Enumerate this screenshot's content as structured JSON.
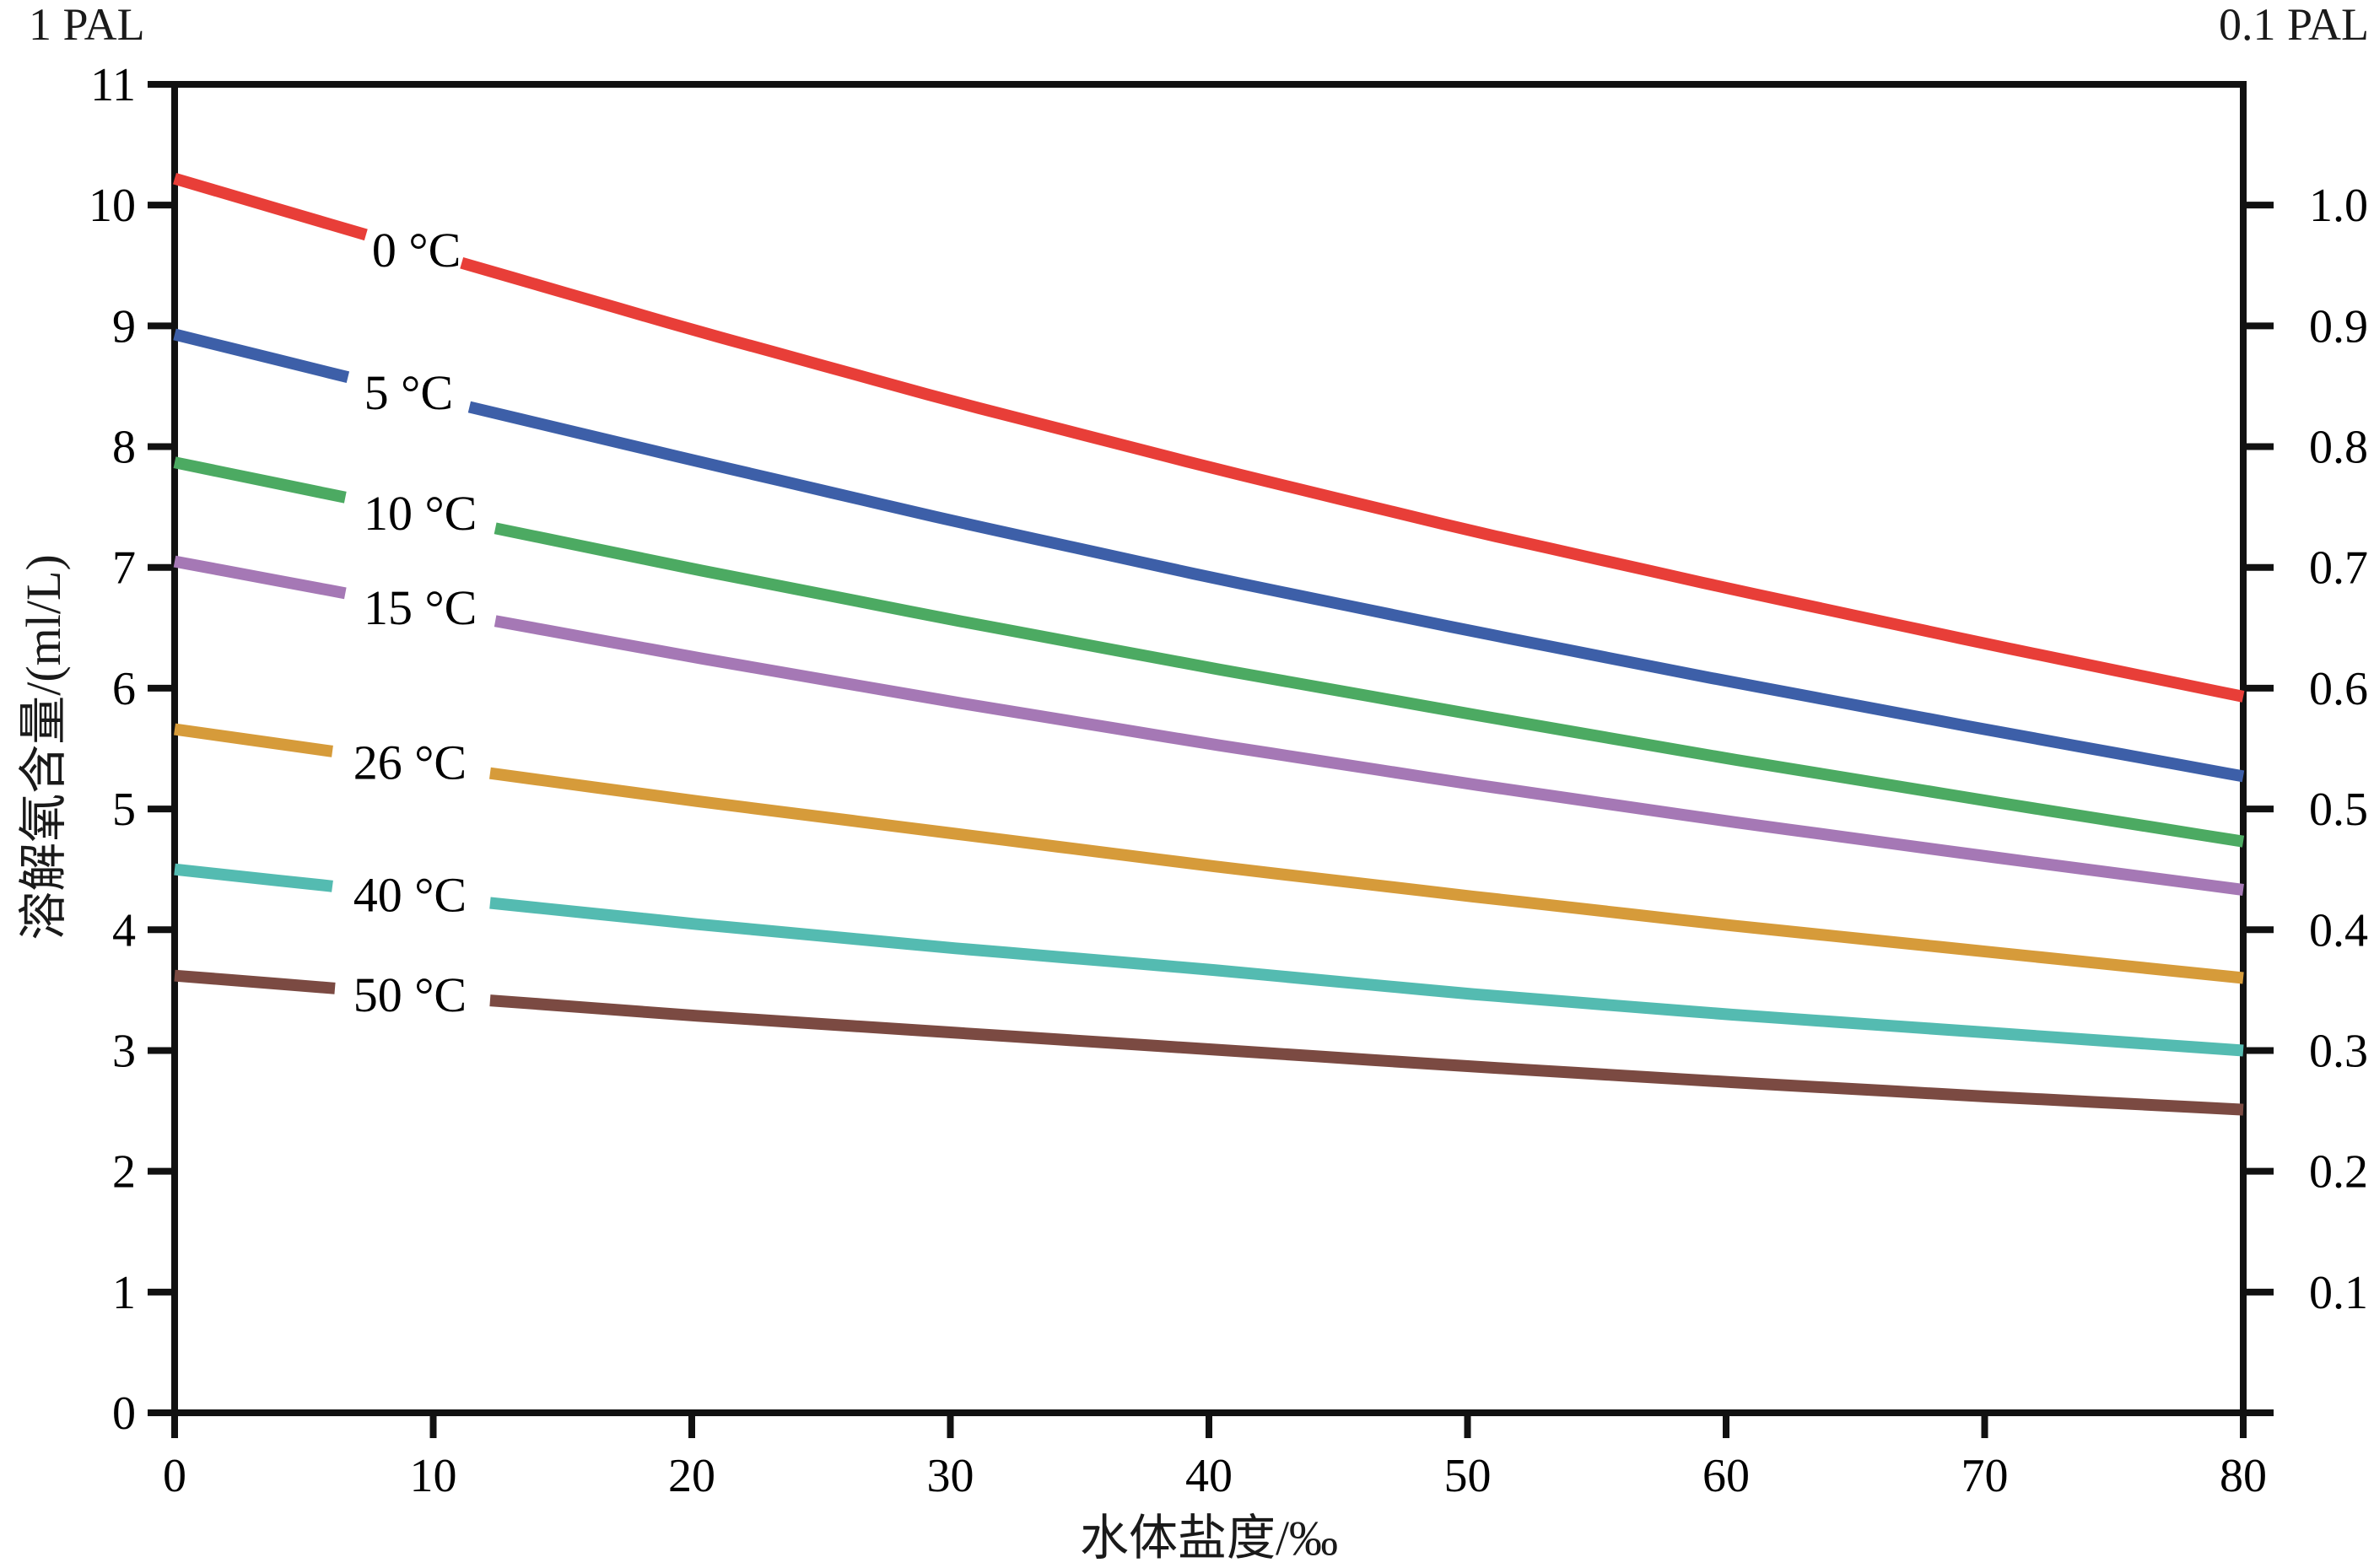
{
  "chart": {
    "pal_left": "1 PAL",
    "pal_right": "0.1 PAL",
    "x_title": "水体盐度/‰",
    "y_title": "溶解氧含量/(ml/L)"
  },
  "chart_data": {
    "type": "line",
    "title": "",
    "xlabel": "水体盐度/‰",
    "ylabel_left": "溶解氧含量/(ml/L)",
    "annotation_left": "1 PAL",
    "annotation_right": "0.1 PAL",
    "xlim": [
      0,
      80
    ],
    "ylim_left": [
      0,
      11
    ],
    "grid": false,
    "legend": "inline-labels-on-lines",
    "x_ticks": [
      0,
      10,
      20,
      30,
      40,
      50,
      60,
      70,
      80
    ],
    "y_ticks_left": [
      0,
      1,
      2,
      3,
      4,
      5,
      6,
      7,
      8,
      9,
      10,
      11
    ],
    "y_ticks_right": [
      "1.0",
      "0.9",
      "0.8",
      "0.7",
      "0.6",
      "0.5",
      "0.4",
      "0.3",
      "0.2",
      "0.1"
    ],
    "right_axis_note": "right PAL value v aligns with left value 10·v",
    "x": [
      0,
      10,
      20,
      30,
      40,
      50,
      60,
      70,
      80
    ],
    "series": [
      {
        "name": "0 °C",
        "color": "#e83e38",
        "values": [
          10.22,
          9.59,
          8.97,
          8.38,
          7.83,
          7.31,
          6.83,
          6.37,
          5.93
        ],
        "gap_x": [
          7.4,
          11.1
        ],
        "label_x": 9.35
      },
      {
        "name": "5 °C",
        "color": "#3d5fa8",
        "values": [
          8.93,
          8.4,
          7.89,
          7.39,
          6.92,
          6.48,
          6.06,
          5.66,
          5.27
        ],
        "gap_x": [
          6.7,
          11.4
        ],
        "label_x": 9.05
      },
      {
        "name": "10 °C",
        "color": "#4caa62",
        "values": [
          7.87,
          7.43,
          6.99,
          6.57,
          6.17,
          5.79,
          5.42,
          5.07,
          4.73
        ],
        "gap_x": [
          6.6,
          12.4
        ],
        "label_x": 9.5
      },
      {
        "name": "15 °C",
        "color": "#a578b5",
        "values": [
          7.05,
          6.65,
          6.26,
          5.89,
          5.54,
          5.21,
          4.9,
          4.61,
          4.33
        ],
        "gap_x": [
          6.6,
          12.4
        ],
        "label_x": 9.5
      },
      {
        "name": "26 °C",
        "color": "#d69b3a",
        "values": [
          5.66,
          5.36,
          5.07,
          4.8,
          4.53,
          4.28,
          4.04,
          3.82,
          3.6
        ],
        "gap_x": [
          6.1,
          12.2
        ],
        "label_x": 9.1
      },
      {
        "name": "40 °C",
        "color": "#54bbb1",
        "values": [
          4.5,
          4.27,
          4.05,
          3.85,
          3.67,
          3.47,
          3.3,
          3.15,
          3.0
        ],
        "gap_x": [
          6.1,
          12.2
        ],
        "label_x": 9.1
      },
      {
        "name": "50 °C",
        "color": "#7b4a42",
        "values": [
          3.62,
          3.45,
          3.29,
          3.15,
          3.01,
          2.87,
          2.74,
          2.62,
          2.51
        ],
        "gap_x": [
          6.2,
          12.2
        ],
        "label_x": 9.1
      }
    ]
  }
}
